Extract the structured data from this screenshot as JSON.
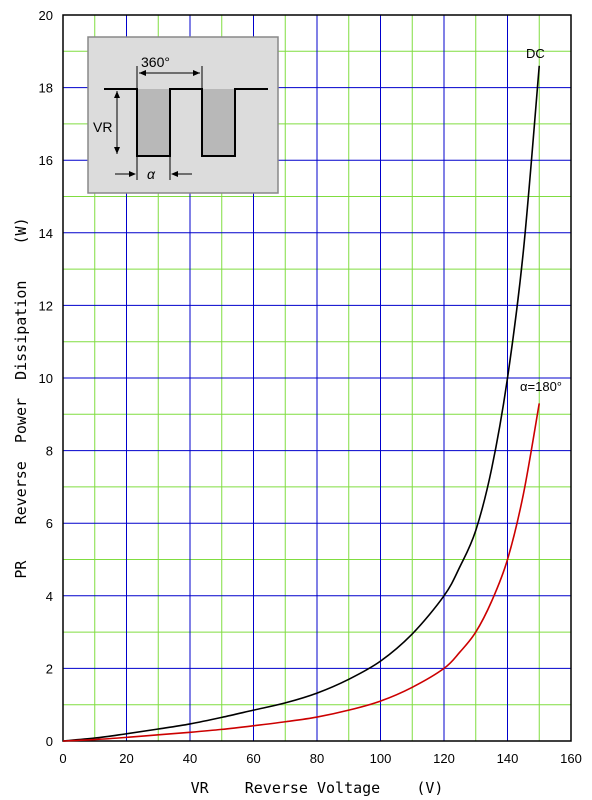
{
  "chart_data": {
    "type": "line",
    "title": "",
    "xlabel": "VR    Reverse Voltage    (V)",
    "ylabel": "PR    Reverse  Power  Dissipation    (W)",
    "xlim": [
      0,
      160
    ],
    "ylim": [
      0,
      20
    ],
    "x_ticks": [
      "0",
      "20",
      "40",
      "60",
      "80",
      "100",
      "120",
      "140",
      "160"
    ],
    "y_ticks": [
      "0",
      "2",
      "4",
      "6",
      "8",
      "10",
      "12",
      "14",
      "16",
      "18",
      "20"
    ],
    "grid": {
      "major_color": "#0000cc",
      "minor_color": "#80dd40",
      "x_major_step": 20,
      "x_minor_step": 10,
      "y_major_step": 2,
      "y_minor_step": 1
    },
    "series": [
      {
        "name": "DC",
        "color": "#000000",
        "x": [
          0,
          10,
          20,
          30,
          40,
          50,
          60,
          70,
          80,
          90,
          100,
          110,
          120,
          125,
          130,
          135,
          140,
          145,
          150
        ],
        "y": [
          0,
          0.08,
          0.2,
          0.33,
          0.47,
          0.65,
          0.85,
          1.05,
          1.32,
          1.7,
          2.2,
          2.95,
          4.0,
          4.8,
          5.8,
          7.5,
          10.0,
          13.5,
          18.6
        ]
      },
      {
        "name": "α=180°",
        "color": "#cc0000",
        "x": [
          0,
          10,
          20,
          30,
          40,
          50,
          60,
          70,
          80,
          90,
          100,
          110,
          120,
          125,
          130,
          135,
          140,
          145,
          150
        ],
        "y": [
          0,
          0.04,
          0.1,
          0.17,
          0.24,
          0.32,
          0.42,
          0.53,
          0.66,
          0.85,
          1.1,
          1.48,
          2.0,
          2.45,
          3.0,
          3.85,
          5.0,
          6.8,
          9.3
        ]
      }
    ],
    "inset": {
      "period_label": "360°",
      "amplitude_label": "VR",
      "width_label": "α"
    }
  }
}
